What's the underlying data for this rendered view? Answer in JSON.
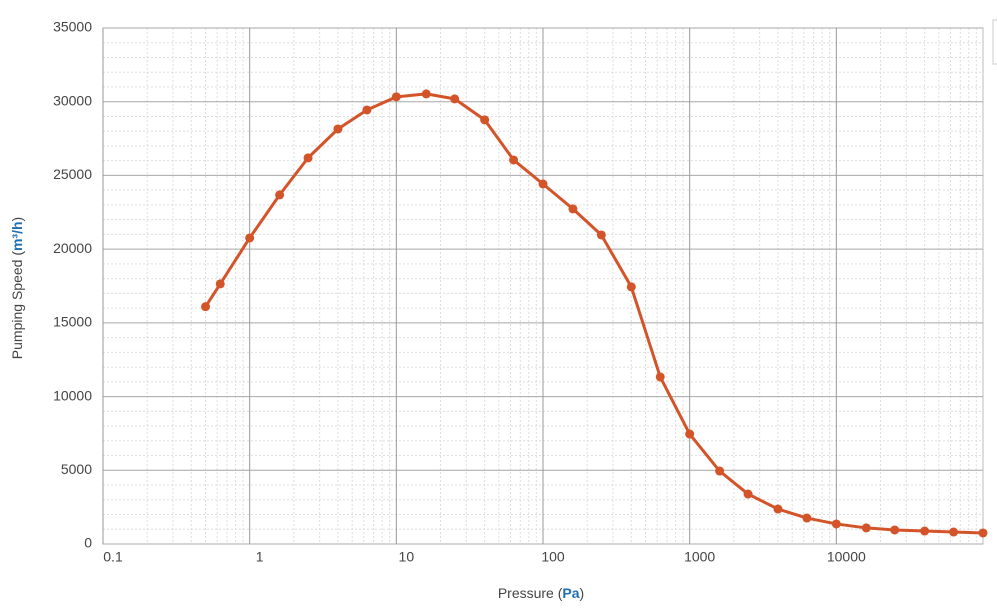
{
  "chart_data": {
    "type": "line",
    "xlabel": {
      "parts": [
        "Pressure (",
        "Pa",
        ")"
      ]
    },
    "ylabel": {
      "parts": [
        "Pumping Speed (",
        "m³/h",
        ")"
      ]
    },
    "x": [
      0.5,
      0.63,
      1,
      1.6,
      2.5,
      4,
      6.3,
      10,
      16,
      25,
      40,
      63,
      100,
      160,
      250,
      400,
      630,
      1000,
      1600,
      2500,
      4000,
      6300,
      10000,
      16000,
      25000,
      40000,
      63000,
      100000
    ],
    "series": [
      {
        "name": "Pumping Speed",
        "color": "#d4542a",
        "values": [
          16100,
          17640,
          20760,
          23680,
          26190,
          28150,
          29440,
          30330,
          30530,
          30190,
          28770,
          26050,
          24420,
          22730,
          20960,
          17440,
          11330,
          7460,
          4950,
          3390,
          2370,
          1760,
          1360,
          1090,
          950,
          880,
          810,
          750
        ]
      }
    ],
    "xscale": "log",
    "xlim": [
      0.1,
      100000
    ],
    "xticks": [
      0.1,
      1,
      10,
      100,
      1000,
      10000
    ],
    "ylim": [
      0,
      35000
    ],
    "yticks": [
      0,
      5000,
      10000,
      15000,
      20000,
      25000,
      30000,
      35000
    ],
    "grid": true
  }
}
